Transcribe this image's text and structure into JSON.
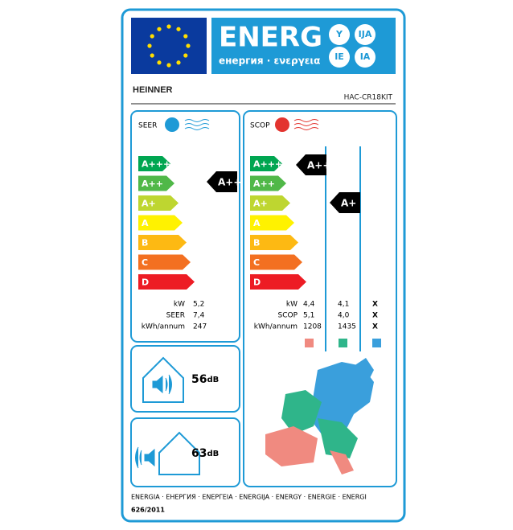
{
  "header": {
    "title": "ENERG",
    "subtitle": "енергия · ενεργεια",
    "badges": [
      "Y",
      "IJA",
      "IE",
      "IA"
    ]
  },
  "brand": "HEINNER",
  "model": "HAC-CR18KIT",
  "classes": [
    {
      "label": "A+++",
      "color": "#00a651"
    },
    {
      "label": "A++",
      "color": "#50b848"
    },
    {
      "label": "A+",
      "color": "#bed630"
    },
    {
      "label": "A",
      "color": "#fff200"
    },
    {
      "label": "B",
      "color": "#fdb913"
    },
    {
      "label": "C",
      "color": "#f37021"
    },
    {
      "label": "D",
      "color": "#ed1c24"
    }
  ],
  "cooling": {
    "label": "SEER",
    "rating": "A++",
    "specs": [
      {
        "name": "kW",
        "values": [
          "5,2"
        ]
      },
      {
        "name": "SEER",
        "values": [
          "7,4"
        ]
      },
      {
        "name": "kWh/annum",
        "values": [
          "247"
        ]
      }
    ]
  },
  "heating": {
    "label": "SCOP",
    "rating_warmer": "A+++",
    "rating_average": "A+",
    "specs": [
      {
        "name": "kW",
        "values": [
          "4,4",
          "4,1",
          "X"
        ]
      },
      {
        "name": "SCOP",
        "values": [
          "5,1",
          "4,0",
          "X"
        ]
      },
      {
        "name": "kWh/annum",
        "values": [
          "1208",
          "1435",
          "X"
        ]
      }
    ]
  },
  "noise": {
    "indoor": {
      "value": "56",
      "unit": "dB"
    },
    "outdoor": {
      "value": "63",
      "unit": "dB"
    }
  },
  "footer": {
    "languages": "ENERGIA · ЕНЕРГИЯ · ΕΝΕΡΓΕΙΑ · ENERGIJA · ENERGY · ENERGIE · ENERGI",
    "regulation": "626/2011"
  }
}
